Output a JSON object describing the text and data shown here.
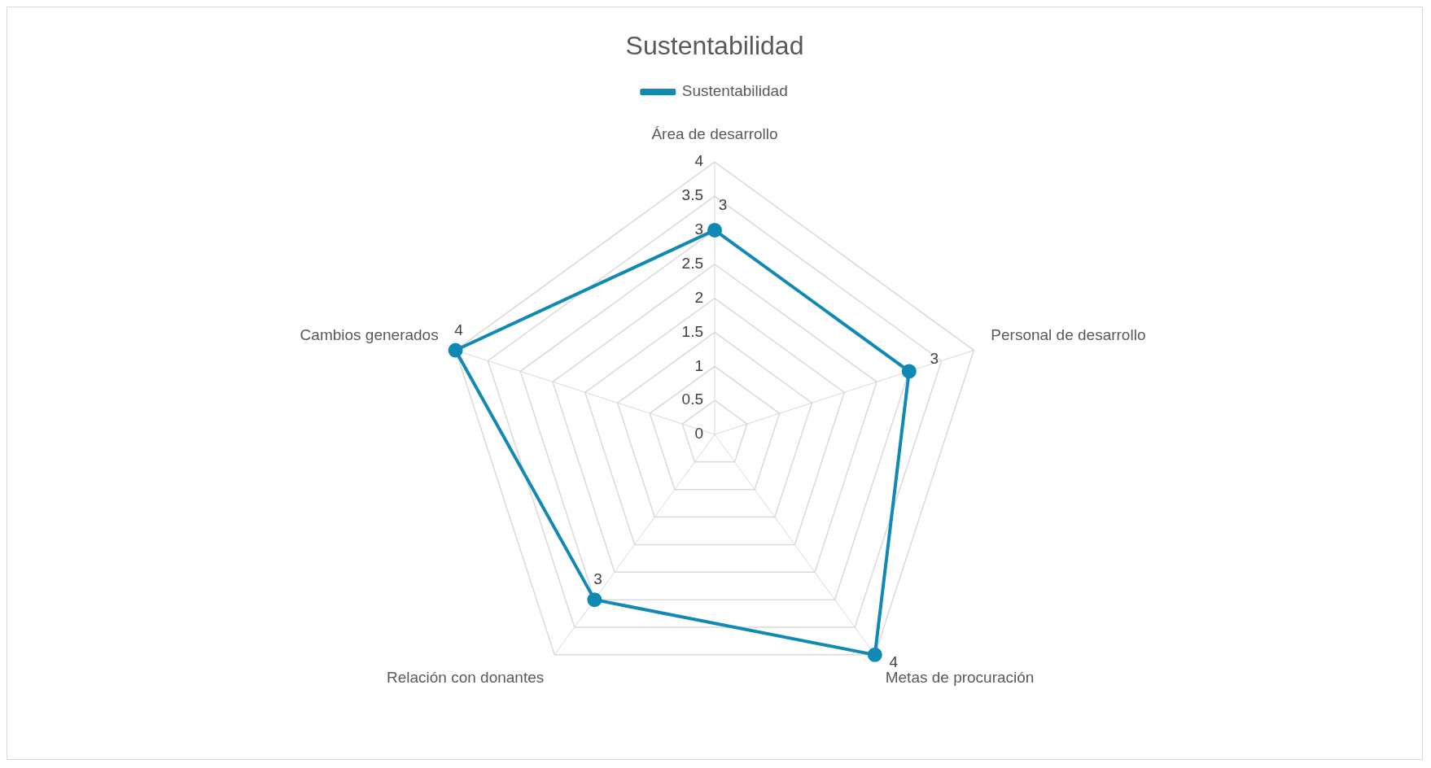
{
  "chart_data": {
    "type": "radar",
    "title": "Sustentabilidad",
    "categories": [
      "Área de desarrollo",
      "Personal de desarrollo",
      "Metas de procuración",
      "Relación con donantes",
      "Cambios generados"
    ],
    "series": [
      {
        "name": "Sustentabilidad",
        "color": "#1089b4",
        "values": [
          3,
          3,
          4,
          3,
          4
        ]
      }
    ],
    "ylim": [
      0,
      4
    ],
    "yticks": [
      0,
      0.5,
      1,
      1.5,
      2,
      2.5,
      3,
      3.5,
      4
    ],
    "grid": true,
    "legend": "top",
    "marker": "circle",
    "line_style": "solid",
    "data_labels": true
  }
}
